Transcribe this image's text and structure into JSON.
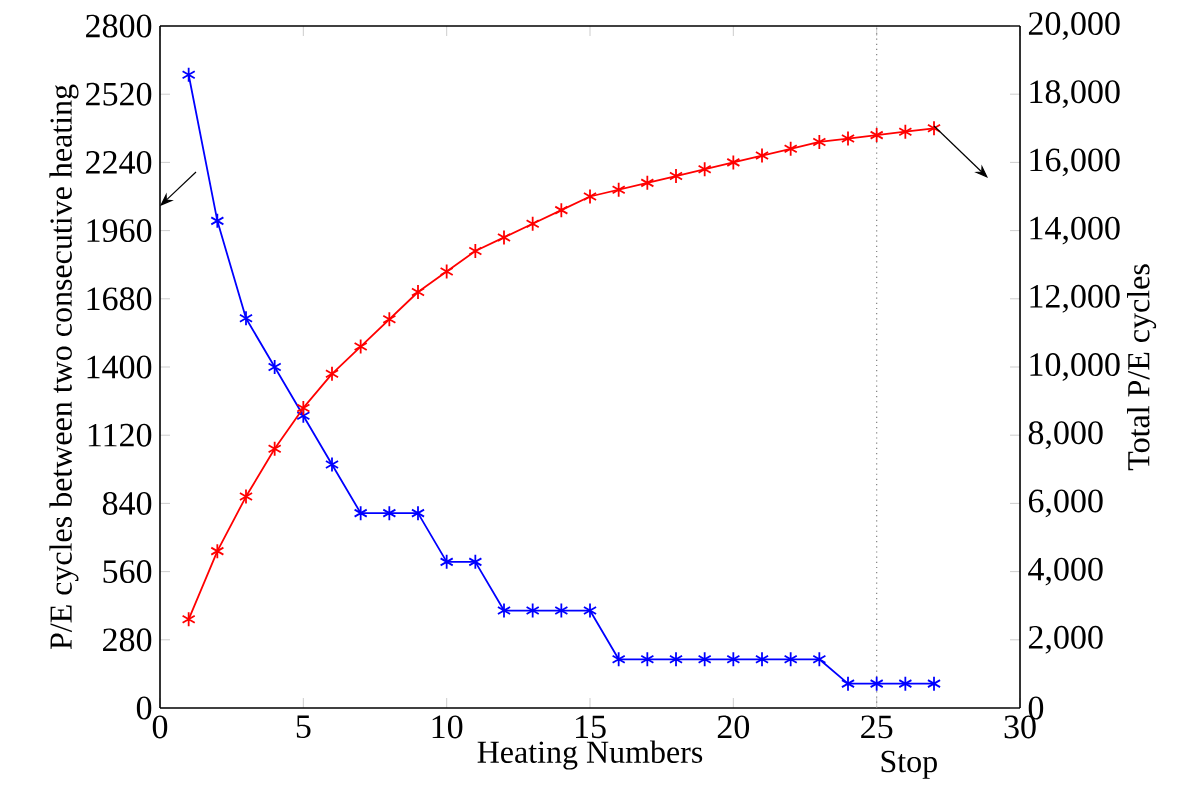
{
  "chart_data": {
    "type": "line",
    "xlabel": "Heating Numbers",
    "ylabel": "P/E cycles between two consecutive heating",
    "y2label": "Total P/E cycles",
    "x": [
      1,
      2,
      3,
      4,
      5,
      6,
      7,
      8,
      9,
      10,
      11,
      12,
      13,
      14,
      15,
      16,
      17,
      18,
      19,
      20,
      21,
      22,
      23,
      24,
      25,
      26,
      27
    ],
    "series": [
      {
        "color": "#0000ff",
        "values": [
          2600,
          2000,
          1600,
          1400,
          1200,
          1000,
          800,
          800,
          800,
          600,
          600,
          400,
          400,
          400,
          400,
          200,
          200,
          200,
          200,
          200,
          200,
          200,
          200,
          100,
          100,
          100,
          100
        ]
      },
      {
        "color": "#ff0000",
        "axis": "y2",
        "values": [
          2600,
          4600,
          6200,
          7600,
          8800,
          9800,
          10600,
          11400,
          12200,
          12800,
          13400,
          13800,
          14200,
          14600,
          15000,
          15200,
          15400,
          15600,
          15800,
          16000,
          16200,
          16400,
          16600,
          16700,
          16800,
          16900,
          17000
        ]
      }
    ],
    "xlim": [
      0,
      30
    ],
    "xticks": [
      0,
      5,
      10,
      15,
      20,
      25,
      30
    ],
    "ylim": [
      0,
      2800
    ],
    "yticks": [
      0,
      280,
      560,
      840,
      1120,
      1400,
      1680,
      1960,
      2240,
      2520,
      2800
    ],
    "y2lim": [
      0,
      20000
    ],
    "y2ticks": [
      0,
      {
        "value": 2000,
        "label": "2,000"
      },
      {
        "value": 4000,
        "label": "4,000"
      },
      {
        "value": 6000,
        "label": "6,000"
      },
      {
        "value": 8000,
        "label": "8,000"
      },
      {
        "value": 10000,
        "label": "10,000"
      },
      {
        "value": 12000,
        "label": "12,000"
      },
      {
        "value": 14000,
        "label": "14,000"
      },
      {
        "value": 16000,
        "label": "16,000"
      },
      {
        "value": 18000,
        "label": "18,000"
      },
      {
        "value": 20000,
        "label": "20,000"
      }
    ],
    "ref_lines": [
      {
        "axis": "x",
        "value": 25,
        "label": "Stop",
        "line_style": "dotted"
      }
    ],
    "marker": "cross",
    "line_style": "solid"
  }
}
